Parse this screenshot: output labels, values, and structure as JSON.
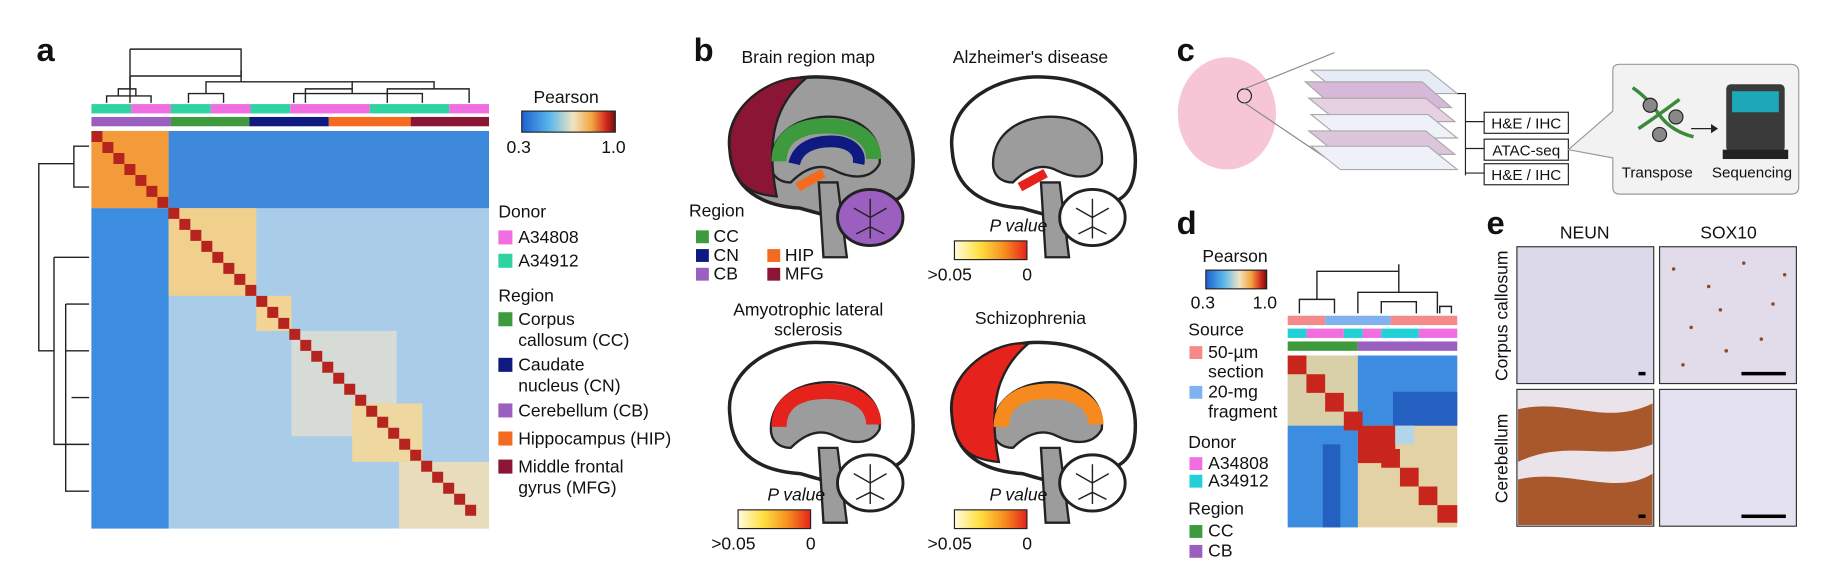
{
  "a": {
    "letter": "a",
    "pearson": {
      "title": "Pearson",
      "min": "0.3",
      "max": "1.0"
    },
    "donor": {
      "title": "Donor",
      "items": [
        "A34808",
        "A34912"
      ]
    },
    "region": {
      "title": "Region",
      "items": [
        {
          "lines": [
            "Corpus",
            "callosum (CC)"
          ]
        },
        {
          "lines": [
            "Caudate",
            "nucleus (CN)"
          ]
        },
        {
          "lines": [
            "Cerebellum (CB)"
          ]
        },
        {
          "lines": [
            "Hippocampus (HIP)"
          ]
        },
        {
          "lines": [
            "Middle frontal",
            "gyrus (MFG)"
          ]
        }
      ]
    }
  },
  "b": {
    "letter": "b",
    "titles": [
      {
        "lines": [
          "Brain region map"
        ]
      },
      {
        "lines": [
          "Alzheimer's disease"
        ]
      },
      {
        "lines": [
          "Amyotrophic lateral",
          "sclerosis"
        ]
      },
      {
        "lines": [
          "Schizophrenia"
        ]
      }
    ],
    "region": {
      "title": "Region",
      "items": [
        "CC",
        "CN",
        "HIP",
        "CB",
        "MFG"
      ]
    },
    "pvalue": {
      "title": "P value",
      "min": ">0.05",
      "max": "0"
    }
  },
  "c": {
    "letter": "c",
    "boxes": [
      "H&E / IHC",
      "ATAC-seq",
      "H&E / IHC"
    ],
    "steps": [
      "Transpose",
      "Sequencing"
    ]
  },
  "d": {
    "letter": "d",
    "pearson": {
      "title": "Pearson",
      "min": "0.3",
      "max": "1.0"
    },
    "source": {
      "title": "Source",
      "items": [
        {
          "lines": [
            "50-µm",
            "section"
          ]
        },
        {
          "lines": [
            "20-mg",
            "fragment"
          ]
        }
      ]
    },
    "donor": {
      "title": "Donor",
      "items": [
        "A34808",
        "A34912"
      ]
    },
    "region": {
      "title": "Region",
      "items": [
        "CC",
        "CB"
      ]
    }
  },
  "e": {
    "letter": "e",
    "columns": [
      "NEUN",
      "SOX10"
    ],
    "rows": [
      "Corpus callosum",
      "Cerebellum"
    ]
  }
}
